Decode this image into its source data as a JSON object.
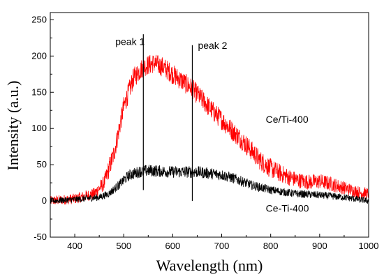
{
  "chart_data": {
    "type": "line",
    "xlabel": "Wavelength (nm)",
    "ylabel": "Intensity (a.u.)",
    "xlim": [
      350,
      1000
    ],
    "ylim": [
      -50,
      260
    ],
    "x_ticks": [
      400,
      500,
      600,
      700,
      800,
      900,
      1000
    ],
    "y_ticks": [
      -50,
      0,
      50,
      100,
      150,
      200,
      250
    ],
    "grid": false,
    "legend": "none",
    "series": [
      {
        "name": "Ce/Ti-400",
        "color": "#ff0000",
        "x": [
          350,
          400,
          440,
          460,
          480,
          500,
          520,
          540,
          560,
          580,
          600,
          620,
          640,
          660,
          680,
          700,
          720,
          740,
          760,
          780,
          800,
          820,
          840,
          860,
          880,
          900,
          920,
          940,
          960,
          980,
          1000
        ],
        "y": [
          0,
          3,
          10,
          25,
          65,
          130,
          170,
          185,
          190,
          185,
          175,
          165,
          155,
          140,
          125,
          112,
          98,
          85,
          70,
          55,
          45,
          38,
          32,
          28,
          26,
          27,
          24,
          20,
          16,
          12,
          10
        ],
        "noise": 14
      },
      {
        "name": "Ce-Ti-400",
        "color": "#000000",
        "x": [
          350,
          400,
          450,
          470,
          490,
          510,
          530,
          550,
          600,
          650,
          700,
          730,
          760,
          800,
          850,
          900,
          950,
          1000
        ],
        "y": [
          0,
          2,
          5,
          10,
          22,
          35,
          40,
          42,
          40,
          40,
          36,
          30,
          22,
          15,
          10,
          8,
          5,
          0
        ],
        "noise": 9
      }
    ],
    "annotations": [
      {
        "text": "peak 1",
        "x": 540,
        "y": 215
      },
      {
        "text": "peak 2",
        "x": 640,
        "y": 210
      },
      {
        "text": "Ce/Ti-400",
        "x": 790,
        "y": 108
      },
      {
        "text": "Ce-Ti-400",
        "x": 790,
        "y": -15
      }
    ],
    "vlines": [
      {
        "x": 540,
        "y0": 15,
        "y1": 230
      },
      {
        "x": 640,
        "y0": 0,
        "y1": 215
      }
    ]
  }
}
